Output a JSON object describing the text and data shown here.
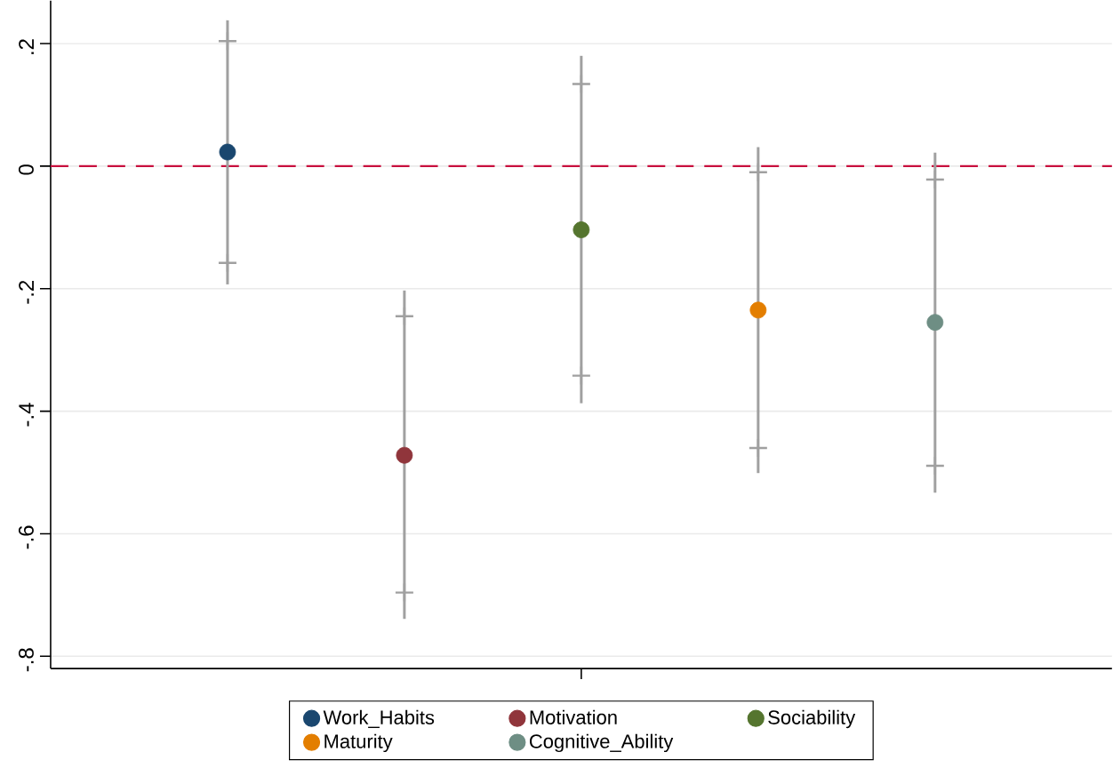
{
  "chart_data": {
    "type": "scatter",
    "categories": [
      null,
      null,
      null,
      null,
      null
    ],
    "ylim": [
      -0.82,
      0.27
    ],
    "yticks": [
      {
        "value": -0.8,
        "label": "-.8"
      },
      {
        "value": -0.6,
        "label": "-.6"
      },
      {
        "value": -0.4,
        "label": "-.4"
      },
      {
        "value": -0.2,
        "label": "-.2"
      },
      {
        "value": 0,
        "label": "0"
      },
      {
        "value": 0.2,
        "label": ".2"
      }
    ],
    "tick_labels": "y",
    "grid": "y",
    "legend": "bottom",
    "marker": "circle",
    "ref_lines": [
      {
        "axis": "y",
        "value": 0,
        "color": "#c8103e",
        "line_style": "dashed"
      }
    ],
    "series": [
      {
        "color": "#a0a0a0",
        "marker": "cross",
        "values": [
          -0.158,
          -0.696,
          -0.342,
          -0.46,
          -0.489
        ]
      },
      {
        "color": "#a0a0a0",
        "marker": "cross",
        "values": [
          0.204,
          -0.245,
          0.134,
          -0.01,
          -0.022
        ]
      },
      {
        "name": "Work_Habits",
        "color": "#1a476f",
        "values": [
          0.023,
          null,
          null,
          null,
          null
        ],
        "errors": [
          [
            -0.193,
            0.238
          ],
          null,
          null,
          null,
          null
        ]
      },
      {
        "name": "Motivation",
        "color": "#90353b",
        "values": [
          null,
          -0.472,
          null,
          null,
          null
        ],
        "errors": [
          null,
          [
            -0.739,
            -0.203
          ],
          null,
          null,
          null
        ]
      },
      {
        "name": "Sociability",
        "color": "#55752f",
        "values": [
          null,
          null,
          -0.104,
          null,
          null
        ],
        "errors": [
          null,
          null,
          [
            -0.387,
            0.18
          ],
          null,
          null
        ]
      },
      {
        "name": "Maturity",
        "color": "#e37e00",
        "values": [
          null,
          null,
          null,
          -0.235,
          null
        ],
        "errors": [
          null,
          null,
          null,
          [
            -0.501,
            0.031
          ],
          null
        ]
      },
      {
        "name": "Cognitive_Ability",
        "color": "#6e8e84",
        "values": [
          null,
          null,
          null,
          null,
          -0.255
        ],
        "errors": [
          null,
          null,
          null,
          null,
          [
            -0.533,
            0.022
          ]
        ]
      }
    ]
  }
}
